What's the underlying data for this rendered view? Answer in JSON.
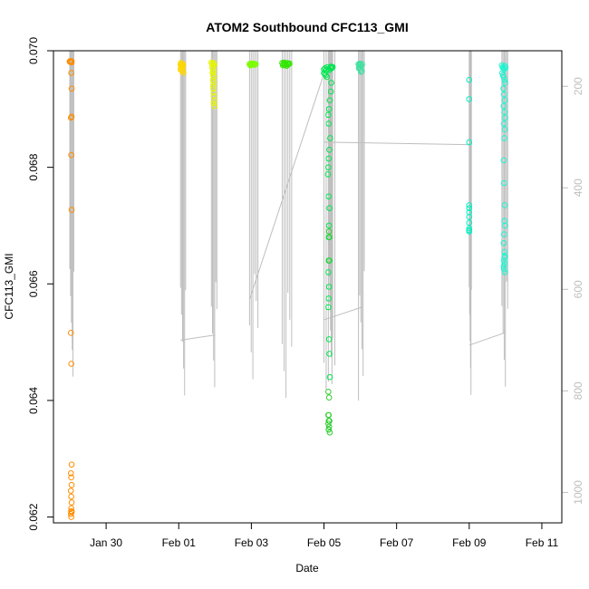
{
  "chart_data": {
    "type": "scatter",
    "title": "ATOM2 Southbound CFC113_GMI",
    "xlabel": "Date",
    "ylabel": "CFC113_GMI",
    "x_ticks": [
      "Jan 30",
      "Feb 01",
      "Feb 03",
      "Feb 05",
      "Feb 07",
      "Feb 09",
      "Feb 11"
    ],
    "x_tick_days": [
      0,
      2,
      4,
      6,
      8,
      10,
      12
    ],
    "xlim_days": [
      -1.45,
      12.55
    ],
    "y_ticks": [
      "0.062",
      "0.064",
      "0.066",
      "0.068",
      "0.070"
    ],
    "y_tick_values": [
      0.062,
      0.064,
      0.066,
      0.068,
      0.07
    ],
    "ylim": [
      0.0619,
      0.07
    ],
    "y2_ticks": [
      "200",
      "400",
      "600",
      "800",
      "1000"
    ],
    "y2_tick_values": [
      200,
      400,
      600,
      800,
      1000
    ],
    "y2lim": [
      1060,
      130
    ],
    "y2_note": "Right axis: pressure (hPa), drawn in grey",
    "grid": false,
    "flight_track_color": "#bebebe",
    "series": [
      {
        "color": "#ff8c00",
        "x_days": [
          -1.0,
          -1.0,
          -0.98,
          -0.98,
          -0.95,
          -0.95,
          -0.96,
          -0.95,
          -0.95,
          -0.97,
          -0.96,
          -0.95,
          -0.97,
          -0.96,
          -0.95,
          -0.97,
          -0.96,
          -0.95,
          -0.97,
          -0.96,
          -0.95,
          -0.96,
          -0.95,
          -0.97,
          -0.96,
          -0.95,
          -0.96
        ],
        "values": [
          0.06982,
          0.06981,
          0.06982,
          0.06982,
          0.06982,
          0.0698,
          0.06962,
          0.06935,
          0.06887,
          0.06885,
          0.06821,
          0.06727,
          0.06516,
          0.06463,
          0.0629,
          0.06275,
          0.06268,
          0.06255,
          0.06245,
          0.06235,
          0.06225,
          0.06215,
          0.0621,
          0.06205,
          0.0621,
          0.06208,
          0.062
        ]
      },
      {
        "color": "#ffd700",
        "x_days": [
          2.05,
          2.06,
          2.08,
          2.1,
          2.12,
          2.05,
          2.07,
          2.09,
          2.11,
          2.13,
          2.06,
          2.1,
          2.12,
          2.08
        ],
        "values": [
          0.06977,
          0.06979,
          0.06976,
          0.06978,
          0.06975,
          0.06968,
          0.06972,
          0.0697,
          0.06965,
          0.06962,
          0.06973,
          0.06967,
          0.06974,
          0.06966
        ]
      },
      {
        "color": "#e6f500",
        "x_days": [
          2.9,
          2.92,
          2.94,
          2.96,
          2.98,
          2.92,
          2.94,
          2.96,
          2.93,
          2.95,
          2.97,
          2.94,
          2.96,
          2.95,
          2.95,
          2.96,
          2.97,
          2.98,
          2.96,
          2.99
        ],
        "values": [
          0.0698,
          0.06978,
          0.06976,
          0.06979,
          0.06975,
          0.06972,
          0.06968,
          0.06965,
          0.06962,
          0.06958,
          0.06955,
          0.0695,
          0.06946,
          0.0694,
          0.06935,
          0.06928,
          0.06922,
          0.06915,
          0.0691,
          0.06905
        ]
      },
      {
        "color": "#7cfc00",
        "x_days": [
          3.95,
          3.98,
          4.0,
          4.03,
          4.06,
          4.09,
          4.12,
          3.97,
          4.01,
          4.05,
          4.1
        ],
        "values": [
          0.06977,
          0.06978,
          0.06976,
          0.06977,
          0.06978,
          0.06976,
          0.06977,
          0.06975,
          0.06978,
          0.06976,
          0.06977
        ]
      },
      {
        "color": "#32e600",
        "x_days": [
          4.85,
          4.88,
          4.9,
          4.93,
          4.96,
          4.99,
          5.02,
          5.05,
          4.87,
          4.92,
          4.97,
          5.01,
          5.04
        ],
        "values": [
          0.06979,
          0.06977,
          0.0698,
          0.06978,
          0.06976,
          0.06979,
          0.06977,
          0.06978,
          0.06975,
          0.06976,
          0.06974,
          0.06976,
          0.06978
        ]
      },
      {
        "color": "#00e650",
        "x_days": [
          6.0,
          6.03,
          6.06,
          6.09,
          6.12,
          6.15,
          6.18,
          6.21,
          6.2,
          6.22,
          6.24,
          6.0,
          6.02,
          6.05,
          6.08,
          6.2,
          6.19,
          6.16,
          6.14,
          6.12,
          6.13,
          6.17,
          6.15,
          6.13,
          6.12,
          6.11,
          6.13,
          6.15,
          6.14,
          6.13,
          6.15,
          6.12,
          6.14,
          6.13,
          6.12,
          6.14,
          6.15,
          6.16,
          6.13
        ],
        "values": [
          0.06968,
          0.0697,
          0.06966,
          0.06972,
          0.06969,
          0.06967,
          0.06971,
          0.0697,
          0.06973,
          0.06971,
          0.06972,
          0.06962,
          0.0696,
          0.06958,
          0.06955,
          0.06945,
          0.0693,
          0.06915,
          0.069,
          0.0689,
          0.06875,
          0.0685,
          0.0683,
          0.06815,
          0.068,
          0.06788,
          0.0675,
          0.0673,
          0.067,
          0.0668,
          0.0664,
          0.0662,
          0.06595,
          0.06575,
          0.0656,
          0.06505,
          0.0648,
          0.0644,
          0.0635
        ]
      },
      {
        "color": "#32cd32",
        "x_days": [
          6.12,
          6.14,
          6.13,
          6.15,
          6.12,
          6.14,
          6.13,
          6.16,
          6.13,
          6.15,
          6.14,
          6.13,
          6.12
        ],
        "values": [
          0.06415,
          0.06405,
          0.06375,
          0.06365,
          0.0636,
          0.06355,
          0.0635,
          0.06345,
          0.06365,
          0.0668,
          0.0669,
          0.0664,
          0.06375
        ]
      },
      {
        "color": "#40e0a0",
        "x_days": [
          6.95,
          6.97,
          6.99,
          7.01,
          7.03,
          7.05,
          6.96,
          7.0,
          7.04,
          6.98,
          7.02
        ],
        "values": [
          0.06977,
          0.06975,
          0.06978,
          0.06976,
          0.06974,
          0.06977,
          0.0697,
          0.06968,
          0.06965,
          0.06972,
          0.06964
        ]
      },
      {
        "color": "#00f0c0",
        "x_days": [
          10.0,
          10.0,
          10.0,
          10.0,
          10.0,
          10.0,
          10.0,
          10.0,
          10.0,
          10.0,
          10.0
        ],
        "values": [
          0.0695,
          0.06917,
          0.06843,
          0.06735,
          0.0673,
          0.06723,
          0.06715,
          0.06705,
          0.06695,
          0.06692,
          0.0669
        ]
      },
      {
        "color": "#19f5d0",
        "x_days": [
          10.9,
          10.92,
          10.94,
          10.96,
          10.98,
          11.0,
          10.91,
          10.93,
          10.95,
          10.97,
          10.99,
          10.94,
          10.96,
          10.98,
          10.95,
          10.97,
          10.99,
          10.96,
          10.98,
          10.97,
          10.95,
          10.96,
          10.98,
          10.97,
          10.99,
          10.96,
          10.95,
          10.97,
          10.98,
          10.96,
          10.97,
          10.95,
          10.96,
          10.98,
          10.97
        ],
        "values": [
          0.06975,
          0.06972,
          0.0697,
          0.06968,
          0.06974,
          0.06971,
          0.06962,
          0.06958,
          0.06955,
          0.0695,
          0.06945,
          0.06935,
          0.06925,
          0.06915,
          0.06905,
          0.06895,
          0.06885,
          0.06875,
          0.06865,
          0.0685,
          0.06812,
          0.06773,
          0.06735,
          0.06708,
          0.067,
          0.06685,
          0.0667,
          0.06655,
          0.06648,
          0.0664,
          0.06635,
          0.0663,
          0.06625,
          0.0662,
          0.06645
        ]
      }
    ]
  }
}
